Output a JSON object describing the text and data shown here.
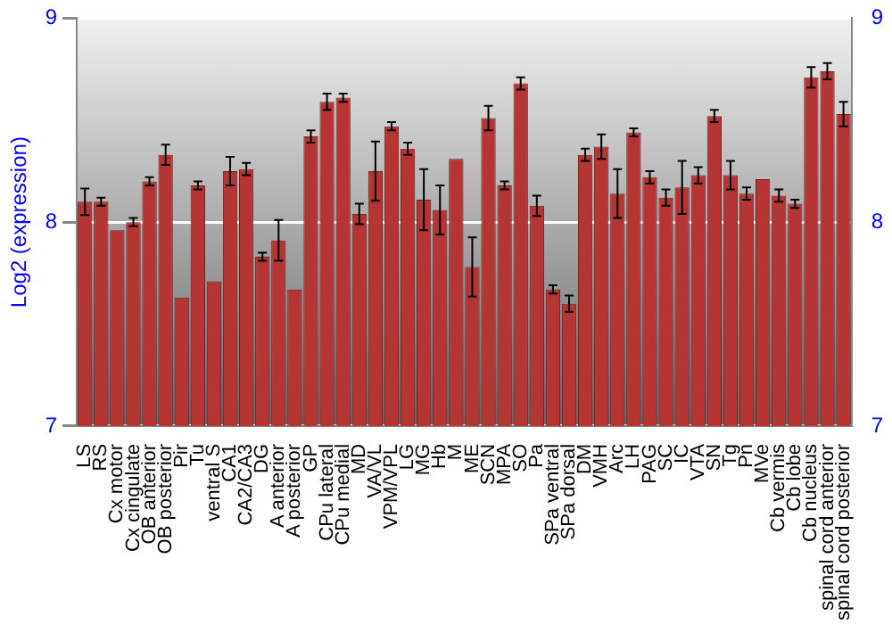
{
  "chart_data": {
    "type": "bar",
    "ylabel": "Log2 (expression)",
    "categories": [
      "LS",
      "RS",
      "Cx motor",
      "Cx cingulate",
      "OB anterior",
      "OB posterior",
      "Pir",
      "Tu",
      "ventral S",
      "CA1",
      "CA2/CA3",
      "DG",
      "A anterior",
      "A posterior",
      "GP",
      "CPu lateral",
      "CPu medial",
      "MD",
      "VA/VL",
      "VPM/VPL",
      "LG",
      "MG",
      "Hb",
      "M",
      "ME",
      "SCN",
      "MPA",
      "SO",
      "Pa",
      "SPa ventral",
      "SPa dorsal",
      "DM",
      "VMH",
      "Arc",
      "LH",
      "PAG",
      "SC",
      "IC",
      "VTA",
      "SN",
      "Tg",
      "Pn",
      "MVe",
      "Cb vermis",
      "Cb lobe",
      "Cb nucleus",
      "spinal cord anterior",
      "spinal cord posterior"
    ],
    "values": [
      8.1,
      8.1,
      7.96,
      8.0,
      8.2,
      8.33,
      7.63,
      8.18,
      7.71,
      8.25,
      8.26,
      7.83,
      7.91,
      7.67,
      8.42,
      8.59,
      8.61,
      8.04,
      8.25,
      8.47,
      8.36,
      8.11,
      8.06,
      8.31,
      7.78,
      8.51,
      8.18,
      8.68,
      8.08,
      7.67,
      7.6,
      8.33,
      8.37,
      8.14,
      8.44,
      8.22,
      8.12,
      8.17,
      8.23,
      8.52,
      8.23,
      8.14,
      8.21,
      8.13,
      8.09,
      8.71,
      8.74,
      8.53
    ],
    "errors": [
      0.065,
      0.02,
      null,
      0.02,
      0.02,
      0.05,
      null,
      0.02,
      null,
      0.07,
      0.03,
      0.02,
      0.1,
      null,
      0.03,
      0.04,
      0.02,
      0.05,
      0.145,
      0.02,
      0.03,
      0.15,
      0.12,
      null,
      0.145,
      0.06,
      0.02,
      0.03,
      0.05,
      0.02,
      0.04,
      0.03,
      0.06,
      0.12,
      0.02,
      0.03,
      0.04,
      0.13,
      0.04,
      0.03,
      0.07,
      0.03,
      null,
      0.03,
      0.02,
      0.05,
      0.04,
      0.06
    ],
    "color": "#b53535",
    "ylim": [
      7,
      9
    ],
    "yticks": [
      7,
      8,
      9
    ],
    "y2lim": [
      7,
      9
    ],
    "y2ticks": [
      7,
      8,
      9
    ],
    "grid": "y",
    "legend": false
  }
}
